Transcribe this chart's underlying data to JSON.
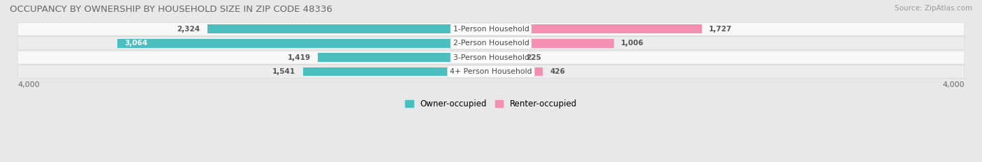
{
  "title": "OCCUPANCY BY OWNERSHIP BY HOUSEHOLD SIZE IN ZIP CODE 48336",
  "source": "Source: ZipAtlas.com",
  "categories": [
    "1-Person Household",
    "2-Person Household",
    "3-Person Household",
    "4+ Person Household"
  ],
  "owner_values": [
    2324,
    3064,
    1419,
    1541
  ],
  "renter_values": [
    1727,
    1006,
    225,
    426
  ],
  "max_val": 4000,
  "owner_color": "#4BBFBF",
  "renter_color": "#F48FB1",
  "bg_color": "#e8e8e8",
  "row_colors": [
    "#f8f8f8",
    "#ececec"
  ],
  "legend_owner": "Owner-occupied",
  "legend_renter": "Renter-occupied",
  "title_fontsize": 9.5,
  "value_fontsize": 7.5,
  "cat_fontsize": 7.8,
  "source_fontsize": 7.5
}
